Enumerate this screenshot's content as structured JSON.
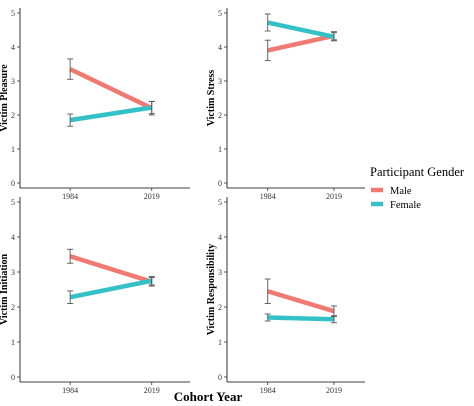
{
  "chart_data": {
    "type": "line",
    "x_title": "Cohort Year",
    "categories": [
      "1984",
      "2019"
    ],
    "y_ticks": [
      "0",
      "1",
      "2",
      "3",
      "4",
      "5"
    ],
    "ylim": [
      0,
      5
    ],
    "grid": false,
    "legend": {
      "title": "Participant Gender",
      "placement": "right",
      "entries": [
        {
          "name": "Male",
          "color": "#f07a72"
        },
        {
          "name": "Female",
          "color": "#33c1c7"
        }
      ]
    },
    "panels": [
      {
        "ylabel": "Victim Pleasure",
        "series": [
          {
            "name": "Male",
            "values": [
              3.35,
              2.2
            ],
            "errors": [
              0.3,
              0.2
            ]
          },
          {
            "name": "Female",
            "values": [
              1.85,
              2.22
            ],
            "errors": [
              0.18,
              0.18
            ]
          }
        ]
      },
      {
        "ylabel": "Victim Stress",
        "series": [
          {
            "name": "Male",
            "values": [
              3.9,
              4.33
            ],
            "errors": [
              0.3,
              0.12
            ]
          },
          {
            "name": "Female",
            "values": [
              4.72,
              4.3
            ],
            "errors": [
              0.25,
              0.12
            ]
          }
        ]
      },
      {
        "ylabel": "Victim Initiation",
        "series": [
          {
            "name": "Male",
            "values": [
              3.45,
              2.72
            ],
            "errors": [
              0.2,
              0.12
            ]
          },
          {
            "name": "Female",
            "values": [
              2.28,
              2.75
            ],
            "errors": [
              0.18,
              0.12
            ]
          }
        ]
      },
      {
        "ylabel": "Victim Responsibility",
        "series": [
          {
            "name": "Male",
            "values": [
              2.45,
              1.88
            ],
            "errors": [
              0.35,
              0.15
            ]
          },
          {
            "name": "Female",
            "values": [
              1.7,
              1.65
            ],
            "errors": [
              0.1,
              0.1
            ]
          }
        ]
      }
    ]
  }
}
